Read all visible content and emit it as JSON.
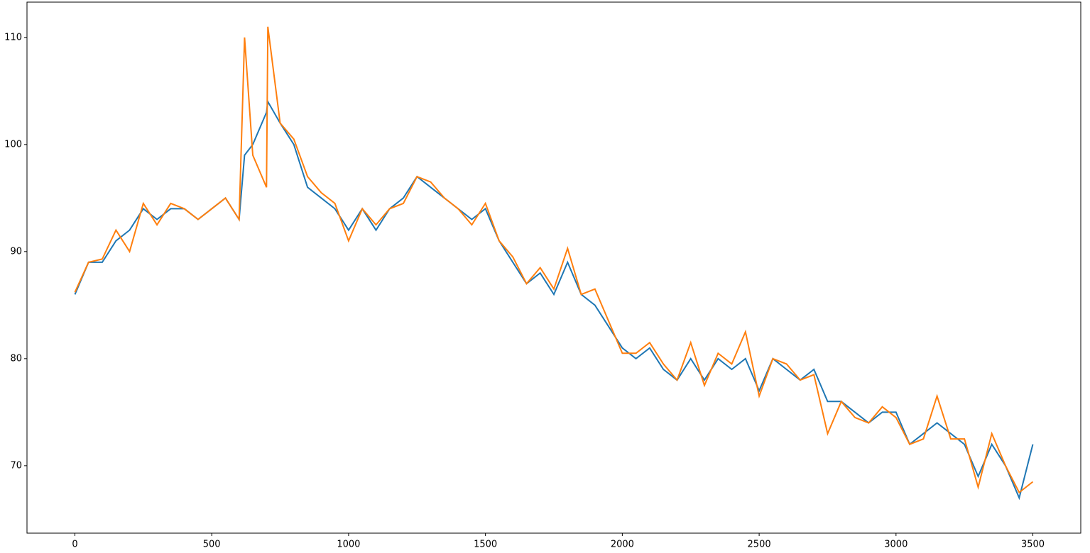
{
  "chart_data": {
    "type": "line",
    "x": [
      0,
      50,
      100,
      150,
      200,
      250,
      300,
      350,
      400,
      450,
      500,
      550,
      600,
      620,
      650,
      700,
      705,
      750,
      800,
      850,
      900,
      950,
      1000,
      1050,
      1100,
      1150,
      1200,
      1250,
      1300,
      1350,
      1400,
      1450,
      1500,
      1550,
      1600,
      1650,
      1700,
      1750,
      1800,
      1850,
      1900,
      1950,
      2000,
      2050,
      2100,
      2150,
      2200,
      2250,
      2300,
      2350,
      2400,
      2450,
      2500,
      2550,
      2600,
      2650,
      2700,
      2750,
      2800,
      2850,
      2900,
      2950,
      3000,
      3050,
      3100,
      3150,
      3200,
      3250,
      3300,
      3350,
      3400,
      3450,
      3500
    ],
    "series": [
      {
        "color": "#1f77b4",
        "values": [
          86,
          89,
          89,
          91,
          92,
          94,
          93,
          94,
          94,
          93,
          94,
          95,
          93,
          99,
          100,
          103,
          104,
          102,
          100,
          96,
          95,
          94,
          92,
          94,
          92,
          94,
          95,
          97,
          96,
          95,
          94,
          93,
          94,
          91,
          89,
          87,
          88,
          86,
          89,
          86,
          85,
          83,
          81,
          80,
          81,
          79,
          78,
          80,
          78,
          80,
          79,
          80,
          77,
          80,
          79,
          78,
          79,
          76,
          76,
          75,
          74,
          75,
          75,
          72,
          73,
          74,
          73,
          72,
          69,
          72,
          70,
          67,
          72
        ]
      },
      {
        "color": "#ff7f0e",
        "values": [
          86.2,
          89,
          89.3,
          92,
          90,
          94.5,
          92.5,
          94.5,
          94,
          93,
          94,
          95,
          93,
          110,
          99,
          96,
          111,
          102,
          100.5,
          97,
          95.5,
          94.5,
          91,
          94,
          92.5,
          94,
          94.5,
          97,
          96.5,
          95,
          94,
          92.5,
          94.5,
          91,
          89.5,
          87,
          88.5,
          86.5,
          90.3,
          86,
          86.5,
          83.5,
          80.5,
          80.5,
          81.5,
          79.5,
          78,
          81.5,
          77.5,
          80.5,
          79.5,
          82.5,
          76.5,
          80,
          79.5,
          78,
          78.5,
          73,
          76,
          74.5,
          74,
          75.5,
          74.5,
          72,
          72.5,
          76.5,
          72.5,
          72.5,
          68,
          73,
          70,
          67.5,
          68.5
        ]
      }
    ],
    "xlim": [
      -175,
      3675
    ],
    "ylim": [
      63.7,
      113.3
    ],
    "xticks": [
      0,
      500,
      1000,
      1500,
      2000,
      2500,
      3000,
      3500
    ],
    "yticks": [
      70,
      80,
      90,
      100,
      110
    ]
  }
}
